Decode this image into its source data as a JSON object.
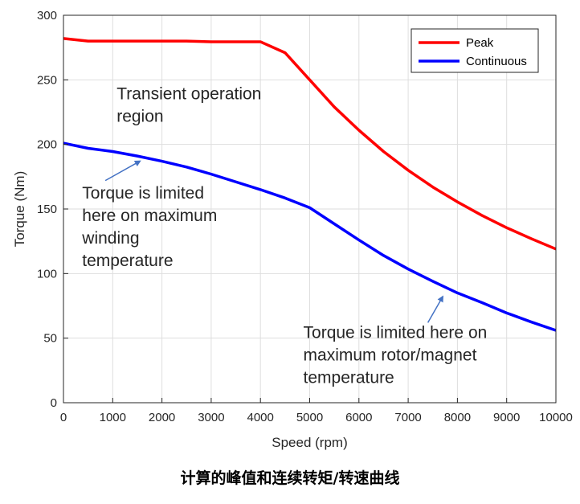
{
  "caption": "计算的峰值和连续转矩/转速曲线",
  "chart_data": {
    "type": "line",
    "title": "",
    "xlabel": "Speed (rpm)",
    "ylabel": "Torque (Nm)",
    "xlim": [
      0,
      10000
    ],
    "ylim": [
      0,
      300
    ],
    "xticks": [
      0,
      1000,
      2000,
      3000,
      4000,
      5000,
      6000,
      7000,
      8000,
      9000,
      10000
    ],
    "yticks": [
      0,
      50,
      100,
      150,
      200,
      250,
      300
    ],
    "grid": true,
    "legend_position": "top-right",
    "series": [
      {
        "name": "Peak",
        "color": "#ff0000",
        "x": [
          0,
          500,
          1000,
          1500,
          2000,
          2500,
          3000,
          3500,
          4000,
          4500,
          5000,
          5500,
          6000,
          6500,
          7000,
          7500,
          8000,
          8500,
          9000,
          9500,
          10000
        ],
        "y": [
          282,
          280,
          280,
          280,
          280,
          280,
          279.5,
          279.5,
          279.5,
          271,
          250,
          229,
          211,
          194.5,
          180,
          167,
          155.5,
          145,
          135.5,
          127,
          119
        ]
      },
      {
        "name": "Continuous",
        "color": "#0000ff",
        "x": [
          0,
          500,
          1000,
          1500,
          2000,
          2500,
          3000,
          3500,
          4000,
          4500,
          5000,
          5500,
          6000,
          6500,
          7000,
          7500,
          8000,
          8500,
          9000,
          9500,
          10000
        ],
        "y": [
          201,
          197,
          194.5,
          191,
          187,
          182.5,
          177,
          171,
          165,
          158.5,
          151,
          138.5,
          126,
          114,
          103.5,
          94,
          85,
          77.5,
          69.5,
          62.5,
          56
        ]
      }
    ],
    "annotations": [
      {
        "lines": [
          "Transient operation",
          "region"
        ],
        "x": 1080,
        "y": 235
      },
      {
        "lines": [
          "Torque is limited",
          "here on maximum",
          "winding",
          "temperature"
        ],
        "x": 380,
        "y": 158
      },
      {
        "lines": [
          "Torque is limited here on",
          "maximum rotor/magnet",
          "temperature"
        ],
        "x": 4870,
        "y": 50
      }
    ],
    "arrows": [
      {
        "from": [
          850,
          172
        ],
        "to": [
          1550,
          187
        ],
        "color": "#4472c4"
      },
      {
        "from": [
          7400,
          62
        ],
        "to": [
          7700,
          82
        ],
        "color": "#4472c4"
      }
    ]
  }
}
